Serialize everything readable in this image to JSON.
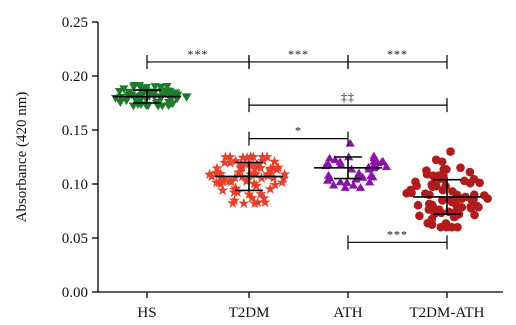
{
  "chart_data": {
    "type": "scatter",
    "title": "",
    "xlabel": "",
    "ylabel": "Absorbance (420 nm)",
    "ylim": [
      0.0,
      0.25
    ],
    "yticks": [
      "0.00",
      "0.05",
      "0.10",
      "0.15",
      "0.20",
      "0.25"
    ],
    "categories": [
      "HS",
      "T2DM",
      "ATH",
      "T2DM-ATH"
    ],
    "groups": [
      {
        "category": "HS",
        "color": "#1e7a2c",
        "marker": "triangle-down",
        "mean": 0.181,
        "sd": 0.006,
        "n": 70,
        "min": 0.172,
        "max": 0.191
      },
      {
        "category": "T2DM",
        "color": "#e8402a",
        "marker": "star",
        "mean": 0.107,
        "sd": 0.013,
        "n": 80,
        "min": 0.082,
        "max": 0.125
      },
      {
        "category": "ATH",
        "color": "#8b12a8",
        "marker": "triangle-up",
        "mean": 0.115,
        "sd": 0.01,
        "n": 38,
        "min": 0.097,
        "max": 0.138
      },
      {
        "category": "T2DM-ATH",
        "color": "#b01c1c",
        "marker": "circle",
        "mean": 0.088,
        "sd": 0.016,
        "n": 75,
        "min": 0.06,
        "max": 0.13
      }
    ],
    "significance": [
      {
        "from": "HS",
        "to": "T2DM",
        "label": "***",
        "y": 0.213
      },
      {
        "from": "T2DM",
        "to": "ATH",
        "label": "***",
        "y": 0.213
      },
      {
        "from": "ATH",
        "to": "T2DM-ATH",
        "label": "***",
        "y": 0.213
      },
      {
        "from": "T2DM",
        "to": "T2DM-ATH",
        "label": "‡‡",
        "y": 0.173
      },
      {
        "from": "T2DM",
        "to": "ATH",
        "label": "*",
        "y": 0.142
      },
      {
        "from": "ATH",
        "to": "T2DM-ATH",
        "label": "***",
        "y": 0.046
      }
    ]
  }
}
